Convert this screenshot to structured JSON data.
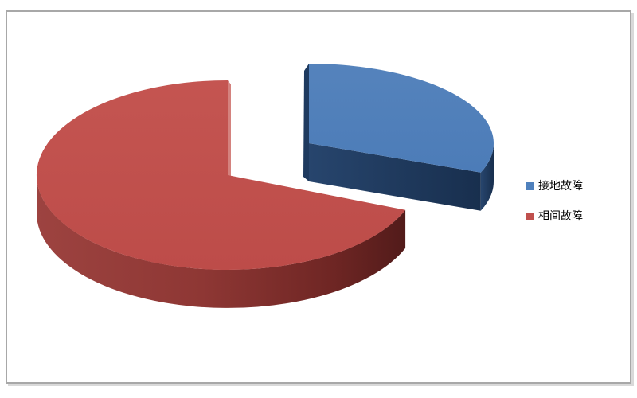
{
  "window": {
    "background": "#ffffff",
    "frame_border_color": "#a8a8a8",
    "frame_shadow_color": "#d9d9d9"
  },
  "chart_data": {
    "type": "pie",
    "style": "3d-exploded",
    "title": "",
    "legend_position": "right",
    "unit": "percent (estimated from slice angles, no data labels shown)",
    "series": [
      {
        "name": "接地故障",
        "value": 31,
        "color": "#4F81BD",
        "top_gradient": [
          "#5583BC",
          "#4C7CB8"
        ],
        "side_color": "#1E3A5F",
        "side_gradient": [
          "#27456D",
          "#182F4E"
        ]
      },
      {
        "name": "相间故障",
        "value": 69,
        "color": "#C0504D",
        "top_gradient": [
          "#C45551",
          "#BD4C49"
        ],
        "side_gradient": [
          "#9D4340",
          "#8E3734",
          "#6F2624",
          "#521B1A"
        ]
      }
    ]
  }
}
